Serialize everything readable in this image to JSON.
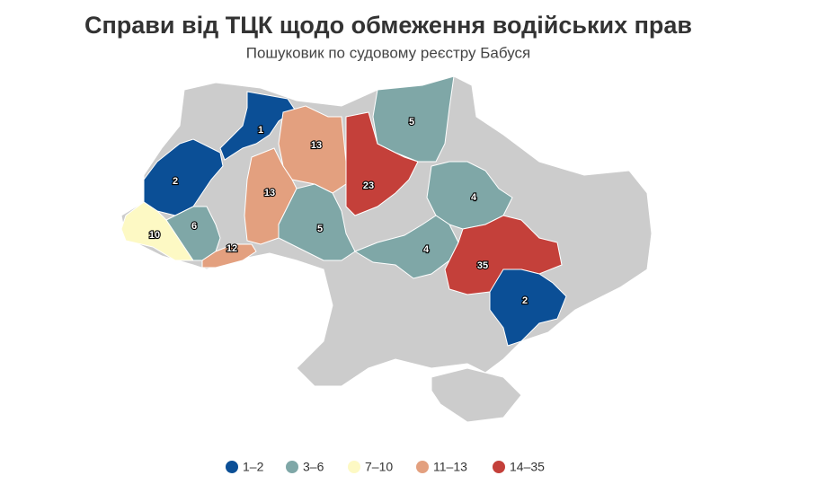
{
  "title": "Справи від ТЦК щодо обмеження водійських прав",
  "subtitle": "Пошуковик по судовому реєстру Бабуся",
  "no_data_color": "#cccccc",
  "legend": [
    {
      "label": "1–2",
      "color": "#0b4f96",
      "range": [
        1,
        2
      ]
    },
    {
      "label": "3–6",
      "color": "#7fa7a7",
      "range": [
        3,
        6
      ]
    },
    {
      "label": "7–10",
      "color": "#fdf9c4",
      "range": [
        7,
        10
      ]
    },
    {
      "label": "11–13",
      "color": "#e3a07f",
      "range": [
        11,
        13
      ]
    },
    {
      "label": "14–35",
      "color": "#c4403a",
      "range": [
        14,
        35
      ]
    }
  ],
  "regions": [
    {
      "value": 1
    },
    {
      "value": 2
    },
    {
      "value": 10
    },
    {
      "value": 6
    },
    {
      "value": 12
    },
    {
      "value": 13
    },
    {
      "value": 13
    },
    {
      "value": 23
    },
    {
      "value": 5
    },
    {
      "value": 5
    },
    {
      "value": 4
    },
    {
      "value": 4
    },
    {
      "value": 35
    },
    {
      "value": 2
    }
  ]
}
